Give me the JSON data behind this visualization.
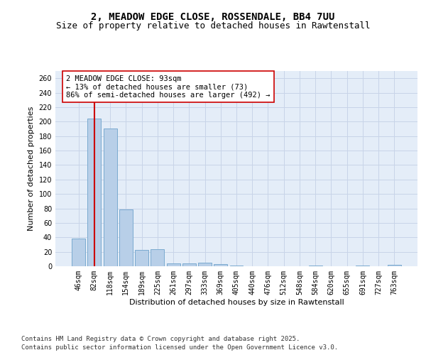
{
  "title_line1": "2, MEADOW EDGE CLOSE, ROSSENDALE, BB4 7UU",
  "title_line2": "Size of property relative to detached houses in Rawtenstall",
  "xlabel": "Distribution of detached houses by size in Rawtenstall",
  "ylabel": "Number of detached properties",
  "bar_labels": [
    "46sqm",
    "82sqm",
    "118sqm",
    "154sqm",
    "189sqm",
    "225sqm",
    "261sqm",
    "297sqm",
    "333sqm",
    "369sqm",
    "405sqm",
    "440sqm",
    "476sqm",
    "512sqm",
    "548sqm",
    "584sqm",
    "620sqm",
    "655sqm",
    "691sqm",
    "727sqm",
    "763sqm"
  ],
  "bar_values": [
    38,
    204,
    190,
    79,
    23,
    24,
    4,
    4,
    5,
    3,
    1,
    0,
    0,
    0,
    0,
    1,
    0,
    0,
    1,
    0,
    2
  ],
  "bar_color": "#b8cfe8",
  "bar_edge_color": "#7aaad0",
  "grid_color": "#c8d4e8",
  "background_color": "#e4edf8",
  "vline_color": "#cc0000",
  "vline_pos": 1.5,
  "annotation_text": "2 MEADOW EDGE CLOSE: 93sqm\n← 13% of detached houses are smaller (73)\n86% of semi-detached houses are larger (492) →",
  "annotation_box_color": "#ffffff",
  "annotation_box_edge": "#cc0000",
  "ylim": [
    0,
    270
  ],
  "yticks": [
    0,
    20,
    40,
    60,
    80,
    100,
    120,
    140,
    160,
    180,
    200,
    220,
    240,
    260
  ],
  "footer_line1": "Contains HM Land Registry data © Crown copyright and database right 2025.",
  "footer_line2": "Contains public sector information licensed under the Open Government Licence v3.0.",
  "title_fontsize": 10,
  "subtitle_fontsize": 9,
  "axis_label_fontsize": 8,
  "tick_fontsize": 7,
  "annotation_fontsize": 7.5,
  "footer_fontsize": 6.5
}
